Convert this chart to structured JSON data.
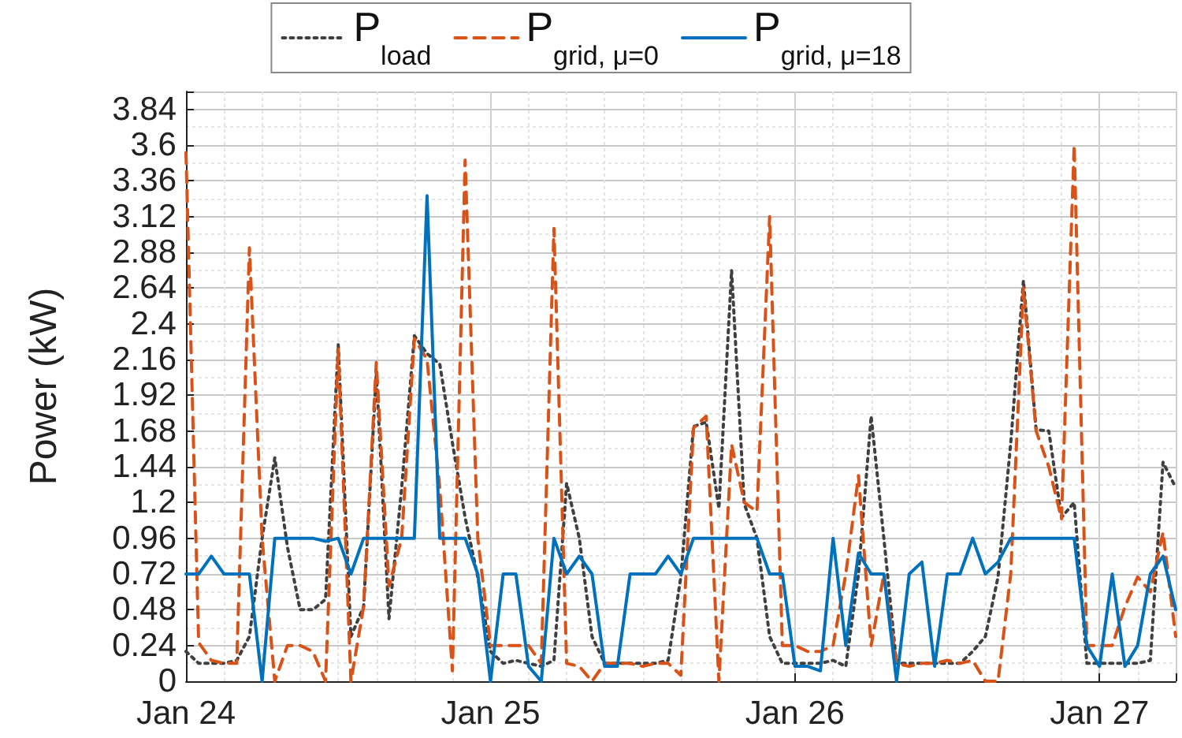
{
  "chart_data": {
    "type": "line",
    "ylabel": "Power (kW)",
    "x": [
      "--01-24T00:00",
      "--01-24T01:00",
      "--01-24T02:00",
      "--01-24T03:00",
      "--01-24T04:00",
      "--01-24T05:00",
      "--01-24T06:00",
      "--01-24T07:00",
      "--01-24T08:00",
      "--01-24T09:00",
      "--01-24T10:00",
      "--01-24T11:00",
      "--01-24T12:00",
      "--01-24T13:00",
      "--01-24T14:00",
      "--01-24T15:00",
      "--01-24T16:00",
      "--01-24T17:00",
      "--01-24T18:00",
      "--01-24T19:00",
      "--01-24T20:00",
      "--01-24T21:00",
      "--01-24T22:00",
      "--01-24T23:00",
      "--01-25T00:00",
      "--01-25T01:00",
      "--01-25T02:00",
      "--01-25T03:00",
      "--01-25T04:00",
      "--01-25T05:00",
      "--01-25T06:00",
      "--01-25T07:00",
      "--01-25T08:00",
      "--01-25T09:00",
      "--01-25T10:00",
      "--01-25T11:00",
      "--01-25T12:00",
      "--01-25T13:00",
      "--01-25T14:00",
      "--01-25T15:00",
      "--01-25T16:00",
      "--01-25T17:00",
      "--01-25T18:00",
      "--01-25T19:00",
      "--01-25T20:00",
      "--01-25T21:00",
      "--01-25T22:00",
      "--01-25T23:00",
      "--01-26T00:00",
      "--01-26T01:00",
      "--01-26T02:00",
      "--01-26T03:00",
      "--01-26T04:00",
      "--01-26T05:00",
      "--01-26T06:00",
      "--01-26T07:00",
      "--01-26T08:00",
      "--01-26T09:00",
      "--01-26T10:00",
      "--01-26T11:00",
      "--01-26T12:00",
      "--01-26T13:00",
      "--01-26T14:00",
      "--01-26T15:00",
      "--01-26T16:00",
      "--01-26T17:00",
      "--01-26T18:00",
      "--01-26T19:00",
      "--01-26T20:00",
      "--01-26T21:00",
      "--01-26T22:00",
      "--01-26T23:00",
      "--01-27T00:00",
      "--01-27T01:00",
      "--01-27T02:00",
      "--01-27T03:00",
      "--01-27T04:00",
      "--01-27T05:00",
      "--01-27T06:00"
    ],
    "series": [
      {
        "name": "P$_{load}$",
        "color": "#404040",
        "line_style": "dotted",
        "values": [
          0.2,
          0.12,
          0.12,
          0.12,
          0.14,
          0.3,
          0.96,
          1.5,
          0.9,
          0.48,
          0.48,
          0.55,
          2.26,
          0.3,
          0.5,
          2.07,
          0.42,
          1.3,
          2.32,
          2.2,
          2.13,
          1.6,
          1.1,
          0.7,
          0.2,
          0.12,
          0.14,
          0.12,
          0.1,
          0.14,
          1.33,
          0.96,
          0.3,
          0.12,
          0.12,
          0.12,
          0.12,
          0.12,
          0.14,
          0.7,
          1.71,
          1.74,
          1.16,
          2.76,
          1.19,
          0.96,
          0.3,
          0.12,
          0.12,
          0.12,
          0.12,
          0.14,
          0.1,
          0.72,
          1.78,
          0.96,
          0.12,
          0.12,
          0.12,
          0.12,
          0.12,
          0.12,
          0.2,
          0.3,
          0.7,
          1.6,
          2.69,
          1.69,
          1.68,
          1.1,
          1.2,
          0.12,
          0.12,
          0.12,
          0.12,
          0.12,
          0.14,
          1.47,
          1.3
        ]
      },
      {
        "name": "P$_{grid, μ=0}$",
        "color": "#d95319",
        "line_style": "dashed",
        "values": [
          3.55,
          0.26,
          0.14,
          0.12,
          0.12,
          2.91,
          0.96,
          0,
          0.24,
          0.24,
          0.2,
          0,
          2.23,
          0,
          0.5,
          2.14,
          0.64,
          0.96,
          2.3,
          2.16,
          1.3,
          0.07,
          3.5,
          0.96,
          0.24,
          0.24,
          0.24,
          0.24,
          0.12,
          3.04,
          0.12,
          0.1,
          0,
          0.12,
          0.12,
          0.12,
          0.1,
          0.12,
          0.12,
          0.04,
          1.7,
          1.78,
          0,
          1.59,
          1.2,
          1.14,
          3.12,
          0.24,
          0.24,
          0.2,
          0.2,
          0.24,
          0.72,
          1.38,
          0.24,
          0.72,
          0.12,
          0.1,
          0.12,
          0.12,
          0.14,
          0.12,
          0.14,
          0,
          0,
          0.72,
          2.64,
          1.68,
          1.44,
          1.09,
          3.6,
          0.24,
          0.24,
          0.24,
          0.5,
          0.7,
          0.6,
          1.0,
          0.3
        ]
      },
      {
        "name": "P$_{grid, μ=18}$",
        "color": "#0072bd",
        "line_style": "solid",
        "values": [
          0.72,
          0.72,
          0.84,
          0.72,
          0.72,
          0.72,
          0,
          0.96,
          0.96,
          0.96,
          0.96,
          0.94,
          0.96,
          0.72,
          0.96,
          0.96,
          0.96,
          0.96,
          0.96,
          3.26,
          0.96,
          0.96,
          0.96,
          0.72,
          0,
          0.72,
          0.72,
          0.1,
          0,
          0.96,
          0.72,
          0.84,
          0.72,
          0.1,
          0.1,
          0.72,
          0.72,
          0.72,
          0.84,
          0.72,
          0.96,
          0.96,
          0.96,
          0.96,
          0.96,
          0.96,
          0.72,
          0.72,
          0.1,
          0.1,
          0.07,
          0.96,
          0.24,
          0.86,
          0.72,
          0.72,
          0,
          0.72,
          0.8,
          0.1,
          0.72,
          0.72,
          0.96,
          0.72,
          0.8,
          0.96,
          0.96,
          0.96,
          0.96,
          0.96,
          0.96,
          0.24,
          0.1,
          0.72,
          0.1,
          0.24,
          0.72,
          0.84,
          0.48
        ]
      }
    ],
    "xlim": [
      "--01-24T00:00",
      "--01-27T06:00"
    ],
    "xticks": [
      {
        "value": "--01-24",
        "label": "Jan 24"
      },
      {
        "value": "--01-25",
        "label": "Jan 25"
      },
      {
        "value": "--01-26",
        "label": "Jan 26"
      },
      {
        "value": "--01-27",
        "label": "Jan 27"
      }
    ],
    "ylim": [
      0,
      3.96
    ],
    "yticks": [
      0,
      0.24,
      0.48,
      0.72,
      0.96,
      1.2,
      1.44,
      1.68,
      1.92,
      2.16,
      2.4,
      2.64,
      2.88,
      3.12,
      3.36,
      3.6,
      3.84
    ],
    "grid": true,
    "legend": "top",
    "marker": "none"
  }
}
